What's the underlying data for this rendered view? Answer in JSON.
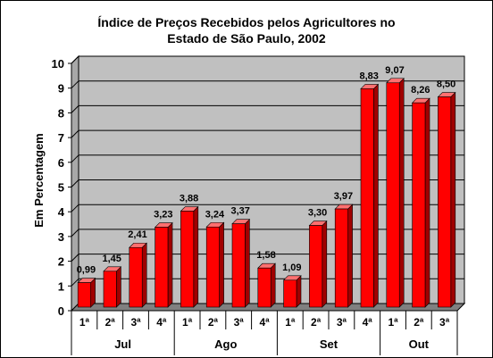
{
  "chart_data": {
    "type": "bar",
    "title_lines": [
      "Índice de Preços Recebidos pelos Agricultores no",
      "Estado de São Paulo, 2002"
    ],
    "ylabel": "Em Percentagem",
    "xlabel": "",
    "ylim": [
      0,
      10
    ],
    "yticks": [
      "0",
      "1",
      "2",
      "3",
      "4",
      "5",
      "6",
      "7",
      "8",
      "9",
      "10"
    ],
    "grid": true,
    "categories": [
      "1ª",
      "2ª",
      "3ª",
      "4ª",
      "1ª",
      "2ª",
      "3ª",
      "4ª",
      "1ª",
      "2ª",
      "3ª",
      "4ª",
      "1ª",
      "2ª",
      "3ª"
    ],
    "groups": [
      {
        "label": "Jul",
        "count": 4
      },
      {
        "label": "Ago",
        "count": 4
      },
      {
        "label": "Set",
        "count": 4
      },
      {
        "label": "Out",
        "count": 3
      }
    ],
    "values": [
      0.99,
      1.45,
      2.41,
      3.23,
      3.88,
      3.24,
      3.37,
      1.58,
      1.09,
      3.3,
      3.97,
      8.83,
      9.07,
      8.26,
      8.5
    ],
    "data_labels": [
      "0,99",
      "1,45",
      "2,41",
      "3,23",
      "3,88",
      "3,24",
      "3,37",
      "1,58",
      "1,09",
      "3,30",
      "3,97",
      "8,83",
      "9,07",
      "8,26",
      "8,50"
    ],
    "colors": {
      "bar": "#ff0000",
      "bar_side": "#a00000",
      "bar_top": "#ff7070",
      "wall": "#c0c0c0",
      "floor": "#808080"
    }
  }
}
